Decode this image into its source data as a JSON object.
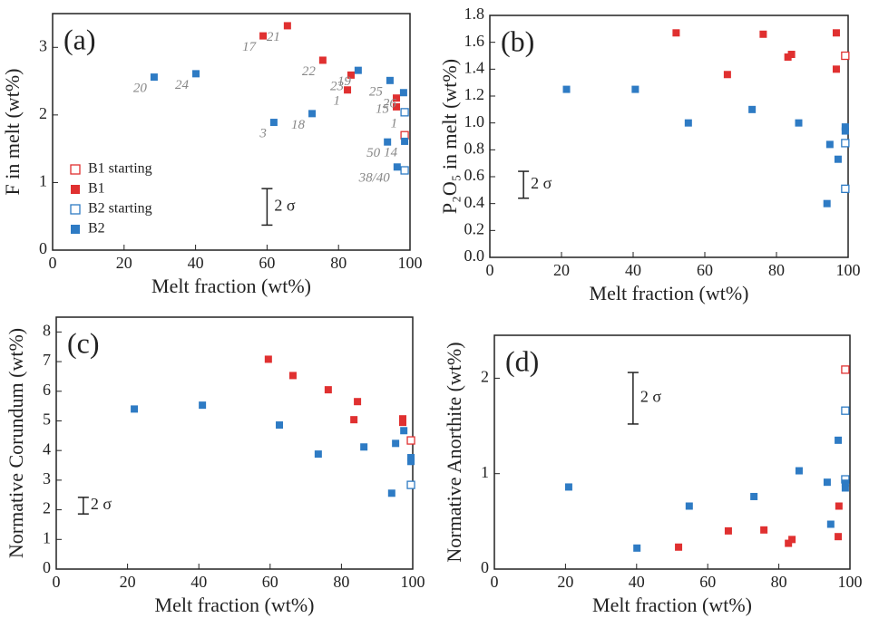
{
  "chart_data": [
    {
      "type": "scatter",
      "panel_label": "(a)",
      "xlabel": "Melt fraction (wt%)",
      "ylabel": "F in melt (wt%)",
      "xlim": [
        0,
        100
      ],
      "ylim": [
        0,
        3.5
      ],
      "xticks": [
        0,
        20,
        40,
        60,
        80,
        100
      ],
      "yticks": [
        0,
        1,
        2,
        3
      ],
      "legend": true,
      "series": [
        {
          "name": "B1 starting",
          "color": "#e03030",
          "marker": "open",
          "x": [
            98.5
          ],
          "values": [
            1.7
          ],
          "point_labels": [
            null
          ]
        },
        {
          "name": "B1",
          "color": "#e03030",
          "marker": "filled",
          "x": [
            58.9,
            65.7,
            75.6,
            83.5,
            82.5,
            96.2,
            96.2
          ],
          "values": [
            3.17,
            3.32,
            2.81,
            2.59,
            2.37,
            2.25,
            2.12
          ],
          "point_labels": [
            "17",
            "21",
            "22",
            "23",
            "1",
            "15",
            null
          ]
        },
        {
          "name": "B2 starting",
          "color": "#2e7bc4",
          "marker": "open",
          "x": [
            98.5,
            98.5
          ],
          "values": [
            2.04,
            1.18
          ],
          "point_labels": [
            "1",
            null
          ]
        },
        {
          "name": "B2",
          "color": "#2e7bc4",
          "marker": "filled",
          "x": [
            28.4,
            40.1,
            61.9,
            72.6,
            85.5,
            94.4,
            98.2,
            93.7,
            98.5,
            96.4
          ],
          "values": [
            2.56,
            2.61,
            1.89,
            2.02,
            2.66,
            2.51,
            2.33,
            1.6,
            1.61,
            1.23
          ],
          "point_labels": [
            "20",
            "24",
            "3",
            "18",
            "19",
            "25",
            "26",
            "50",
            "14",
            "38/40"
          ]
        }
      ],
      "error_bar": {
        "label": "2 σ",
        "x": 60,
        "y": 0.64,
        "error": 0.27
      }
    },
    {
      "type": "scatter",
      "panel_label": "(b)",
      "xlabel": "Melt fraction (wt%)",
      "ylabel": "P₂O₅ in melt (wt%)",
      "xlim": [
        0,
        100
      ],
      "ylim": [
        0,
        1.8
      ],
      "xticks": [
        0,
        20,
        40,
        60,
        80,
        100
      ],
      "yticks": [
        {
          "value": 0,
          "label": "0.0"
        },
        0.2,
        0.4,
        0.6,
        0.8,
        {
          "value": 1,
          "label": "1.0"
        },
        1.2,
        1.4,
        1.6,
        1.8
      ],
      "legend": false,
      "series": [
        {
          "name": "B1 starting",
          "color": "#e03030",
          "marker": "open",
          "x": [
            99.2
          ],
          "values": [
            1.5
          ]
        },
        {
          "name": "B1",
          "color": "#e03030",
          "marker": "filled",
          "x": [
            52.0,
            66.3,
            76.3,
            83.2,
            84.2,
            96.7,
            96.7
          ],
          "values": [
            1.67,
            1.36,
            1.66,
            1.49,
            1.51,
            1.67,
            1.4
          ]
        },
        {
          "name": "B2 starting",
          "color": "#2e7bc4",
          "marker": "open",
          "x": [
            99.2,
            99.2
          ],
          "values": [
            0.85,
            0.51
          ]
        },
        {
          "name": "B2",
          "color": "#2e7bc4",
          "marker": "filled",
          "x": [
            21.4,
            40.6,
            55.4,
            73.2,
            86.2,
            94.9,
            97.2,
            94.1,
            99.2,
            99.2
          ],
          "values": [
            1.25,
            1.25,
            1.0,
            1.1,
            1.0,
            0.84,
            0.73,
            0.4,
            0.97,
            0.94
          ]
        }
      ],
      "error_bar": {
        "label": "2 σ",
        "x": 9.4,
        "y": 0.54,
        "error": 0.1
      }
    },
    {
      "type": "scatter",
      "panel_label": "(c)",
      "xlabel": "Melt fraction (wt%)",
      "ylabel": "Normative Corundum (wt%)",
      "xlim": [
        0,
        100
      ],
      "ylim": [
        0,
        8.5
      ],
      "xticks": [
        0,
        20,
        40,
        60,
        80,
        100
      ],
      "yticks": [
        0,
        1,
        2,
        3,
        4,
        5,
        6,
        7,
        8
      ],
      "legend": false,
      "series": [
        {
          "name": "B1 starting",
          "color": "#e03030",
          "marker": "open",
          "x": [
            99.5
          ],
          "values": [
            4.34
          ]
        },
        {
          "name": "B1",
          "color": "#e03030",
          "marker": "filled",
          "x": [
            59.5,
            66.4,
            76.3,
            84.5,
            83.5,
            97.2,
            97.2
          ],
          "values": [
            7.08,
            6.53,
            6.05,
            5.65,
            5.04,
            5.07,
            4.95
          ]
        },
        {
          "name": "B2 starting",
          "color": "#2e7bc4",
          "marker": "open",
          "x": [
            99.5
          ],
          "values": [
            2.84
          ]
        },
        {
          "name": "B2",
          "color": "#2e7bc4",
          "marker": "filled",
          "x": [
            21.9,
            41.0,
            62.6,
            73.5,
            86.3,
            95.2,
            97.5,
            94.1,
            99.5,
            99.5
          ],
          "values": [
            5.4,
            5.53,
            4.86,
            3.88,
            4.12,
            4.24,
            4.67,
            2.56,
            3.76,
            3.63
          ]
        }
      ],
      "error_bar": {
        "label": "2 σ",
        "x": 7.6,
        "y": 2.14,
        "error": 0.28
      }
    },
    {
      "type": "scatter",
      "panel_label": "(d)",
      "xlabel": "Melt fraction (wt%)",
      "ylabel": "Normative Anorthite (wt%)",
      "xlim": [
        0,
        100
      ],
      "ylim": [
        0,
        2.45
      ],
      "xticks": [
        0,
        20,
        40,
        60,
        80,
        100
      ],
      "yticks": [
        0,
        1,
        2
      ],
      "legend": false,
      "series": [
        {
          "name": "B1 starting",
          "color": "#e03030",
          "marker": "open",
          "x": [
            98.7
          ],
          "values": [
            2.09
          ]
        },
        {
          "name": "B1",
          "color": "#e03030",
          "marker": "filled",
          "x": [
            51.8,
            65.8,
            75.8,
            82.7,
            83.7,
            96.9,
            96.7
          ],
          "values": [
            0.23,
            0.4,
            0.41,
            0.27,
            0.31,
            0.66,
            0.34
          ]
        },
        {
          "name": "B2 starting",
          "color": "#2e7bc4",
          "marker": "open",
          "x": [
            98.7,
            98.7
          ],
          "values": [
            1.66,
            0.94
          ]
        },
        {
          "name": "B2",
          "color": "#2e7bc4",
          "marker": "filled",
          "x": [
            20.9,
            40.1,
            54.8,
            73.0,
            85.7,
            93.6,
            94.6,
            96.7,
            98.7,
            98.7
          ],
          "values": [
            0.86,
            0.22,
            0.66,
            0.76,
            1.03,
            0.91,
            0.47,
            1.35,
            0.9,
            0.85
          ]
        }
      ],
      "error_bar": {
        "label": "2 σ",
        "x": 39.0,
        "y": 1.79,
        "error": 0.27
      }
    }
  ]
}
